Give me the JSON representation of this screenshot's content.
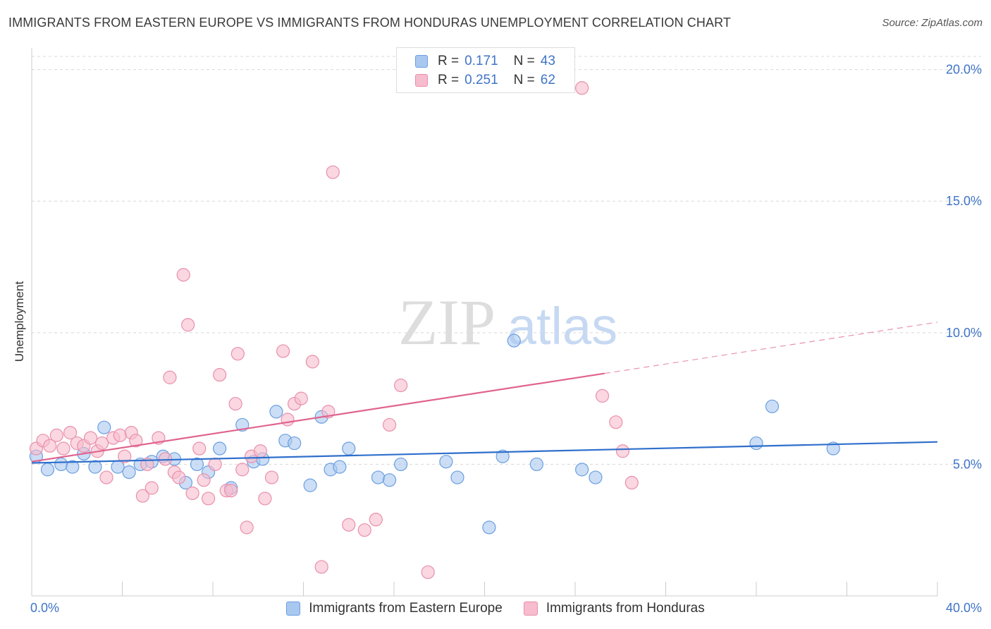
{
  "header": {
    "title": "IMMIGRANTS FROM EASTERN EUROPE VS IMMIGRANTS FROM HONDURAS UNEMPLOYMENT CORRELATION CHART",
    "source": "Source: ZipAtlas.com"
  },
  "watermark": {
    "zip": "ZIP",
    "atlas": "atlas"
  },
  "legend": {
    "rows": [
      {
        "r_label": "R =",
        "r_value": "0.171",
        "n_label": "N =",
        "n_value": "43"
      },
      {
        "r_label": "R =",
        "r_value": "0.251",
        "n_label": "N =",
        "n_value": "62"
      }
    ]
  },
  "colors": {
    "blue_fill": "#a9c8f0",
    "blue_stroke": "#6b9ee0",
    "blue_line": "#2f6fcc",
    "pink_fill": "#f7bccd",
    "pink_stroke": "#e98fac",
    "pink_line": "#e0648e",
    "grid": "#d8d8d8",
    "axis_text": "#3f74c7"
  },
  "chart_data": {
    "type": "scatter",
    "title": "IMMIGRANTS FROM EASTERN EUROPE VS IMMIGRANTS FROM HONDURAS UNEMPLOYMENT CORRELATION CHART",
    "xlabel": "",
    "ylabel": "Unemployment",
    "xlim": [
      0,
      40
    ],
    "ylim": [
      0,
      20.5
    ],
    "x_tick_labels": [
      "0.0%",
      "40.0%"
    ],
    "y_ticks": [
      5,
      10,
      15,
      20
    ],
    "y_tick_labels": [
      "5.0%",
      "10.0%",
      "15.0%",
      "20.0%"
    ],
    "grid": true,
    "legend_position": "bottom",
    "series": [
      {
        "name": "Immigrants from Eastern Europe",
        "color": "#a9c8f0",
        "trend": {
          "x": [
            0,
            40
          ],
          "y": [
            5.05,
            5.85
          ],
          "dashed_from": null
        },
        "points": [
          [
            0.2,
            5.3
          ],
          [
            0.7,
            4.8
          ],
          [
            1.3,
            5.0
          ],
          [
            1.8,
            4.9
          ],
          [
            2.3,
            5.4
          ],
          [
            2.8,
            4.9
          ],
          [
            3.2,
            6.4
          ],
          [
            3.8,
            4.9
          ],
          [
            4.3,
            4.7
          ],
          [
            4.8,
            5.0
          ],
          [
            5.3,
            5.1
          ],
          [
            5.8,
            5.3
          ],
          [
            6.3,
            5.2
          ],
          [
            6.8,
            4.3
          ],
          [
            7.3,
            5.0
          ],
          [
            7.8,
            4.7
          ],
          [
            8.3,
            5.6
          ],
          [
            8.8,
            4.1
          ],
          [
            9.3,
            6.5
          ],
          [
            9.8,
            5.1
          ],
          [
            10.2,
            5.2
          ],
          [
            10.8,
            7.0
          ],
          [
            11.2,
            5.9
          ],
          [
            11.6,
            5.8
          ],
          [
            12.3,
            4.2
          ],
          [
            12.8,
            6.8
          ],
          [
            13.2,
            4.8
          ],
          [
            13.6,
            4.9
          ],
          [
            14.0,
            5.6
          ],
          [
            15.3,
            4.5
          ],
          [
            15.8,
            4.4
          ],
          [
            16.3,
            5.0
          ],
          [
            18.3,
            5.1
          ],
          [
            18.8,
            4.5
          ],
          [
            20.2,
            2.6
          ],
          [
            20.8,
            5.3
          ],
          [
            21.3,
            9.7
          ],
          [
            22.3,
            5.0
          ],
          [
            24.3,
            4.8
          ],
          [
            24.9,
            4.5
          ],
          [
            32.0,
            5.8
          ],
          [
            32.7,
            7.2
          ],
          [
            35.4,
            5.6
          ]
        ]
      },
      {
        "name": "Immigrants from Honduras",
        "color": "#f7bccd",
        "trend": {
          "x": [
            0,
            40
          ],
          "y": [
            5.1,
            10.4
          ],
          "dashed_from": 25.3
        },
        "points": [
          [
            0.2,
            5.6
          ],
          [
            0.5,
            5.9
          ],
          [
            0.8,
            5.7
          ],
          [
            1.1,
            6.1
          ],
          [
            1.4,
            5.6
          ],
          [
            1.7,
            6.2
          ],
          [
            2.0,
            5.8
          ],
          [
            2.3,
            5.7
          ],
          [
            2.6,
            6.0
          ],
          [
            2.9,
            5.5
          ],
          [
            3.1,
            5.8
          ],
          [
            3.3,
            4.5
          ],
          [
            3.6,
            6.0
          ],
          [
            3.9,
            6.1
          ],
          [
            4.1,
            5.3
          ],
          [
            4.4,
            6.2
          ],
          [
            4.6,
            5.9
          ],
          [
            4.9,
            3.8
          ],
          [
            5.1,
            5.0
          ],
          [
            5.3,
            4.1
          ],
          [
            5.6,
            6.0
          ],
          [
            5.9,
            5.2
          ],
          [
            6.1,
            8.3
          ],
          [
            6.3,
            4.7
          ],
          [
            6.5,
            4.5
          ],
          [
            6.7,
            12.2
          ],
          [
            6.9,
            10.3
          ],
          [
            7.1,
            3.9
          ],
          [
            7.4,
            5.6
          ],
          [
            7.6,
            4.4
          ],
          [
            7.8,
            3.7
          ],
          [
            8.1,
            5.0
          ],
          [
            8.3,
            8.4
          ],
          [
            8.6,
            4.0
          ],
          [
            8.8,
            4.0
          ],
          [
            9.0,
            7.3
          ],
          [
            9.1,
            9.2
          ],
          [
            9.3,
            4.8
          ],
          [
            9.5,
            2.6
          ],
          [
            9.7,
            5.3
          ],
          [
            10.1,
            5.5
          ],
          [
            10.3,
            3.7
          ],
          [
            10.6,
            4.5
          ],
          [
            11.1,
            9.3
          ],
          [
            11.3,
            6.7
          ],
          [
            11.6,
            7.3
          ],
          [
            11.9,
            7.5
          ],
          [
            12.4,
            8.9
          ],
          [
            12.8,
            1.1
          ],
          [
            13.1,
            7.0
          ],
          [
            13.3,
            16.1
          ],
          [
            14.0,
            2.7
          ],
          [
            14.7,
            2.5
          ],
          [
            15.2,
            2.9
          ],
          [
            15.8,
            6.5
          ],
          [
            16.3,
            8.0
          ],
          [
            17.5,
            0.9
          ],
          [
            24.3,
            19.3
          ],
          [
            25.2,
            7.6
          ],
          [
            25.8,
            6.6
          ],
          [
            26.1,
            5.5
          ],
          [
            26.5,
            4.3
          ]
        ]
      }
    ]
  }
}
